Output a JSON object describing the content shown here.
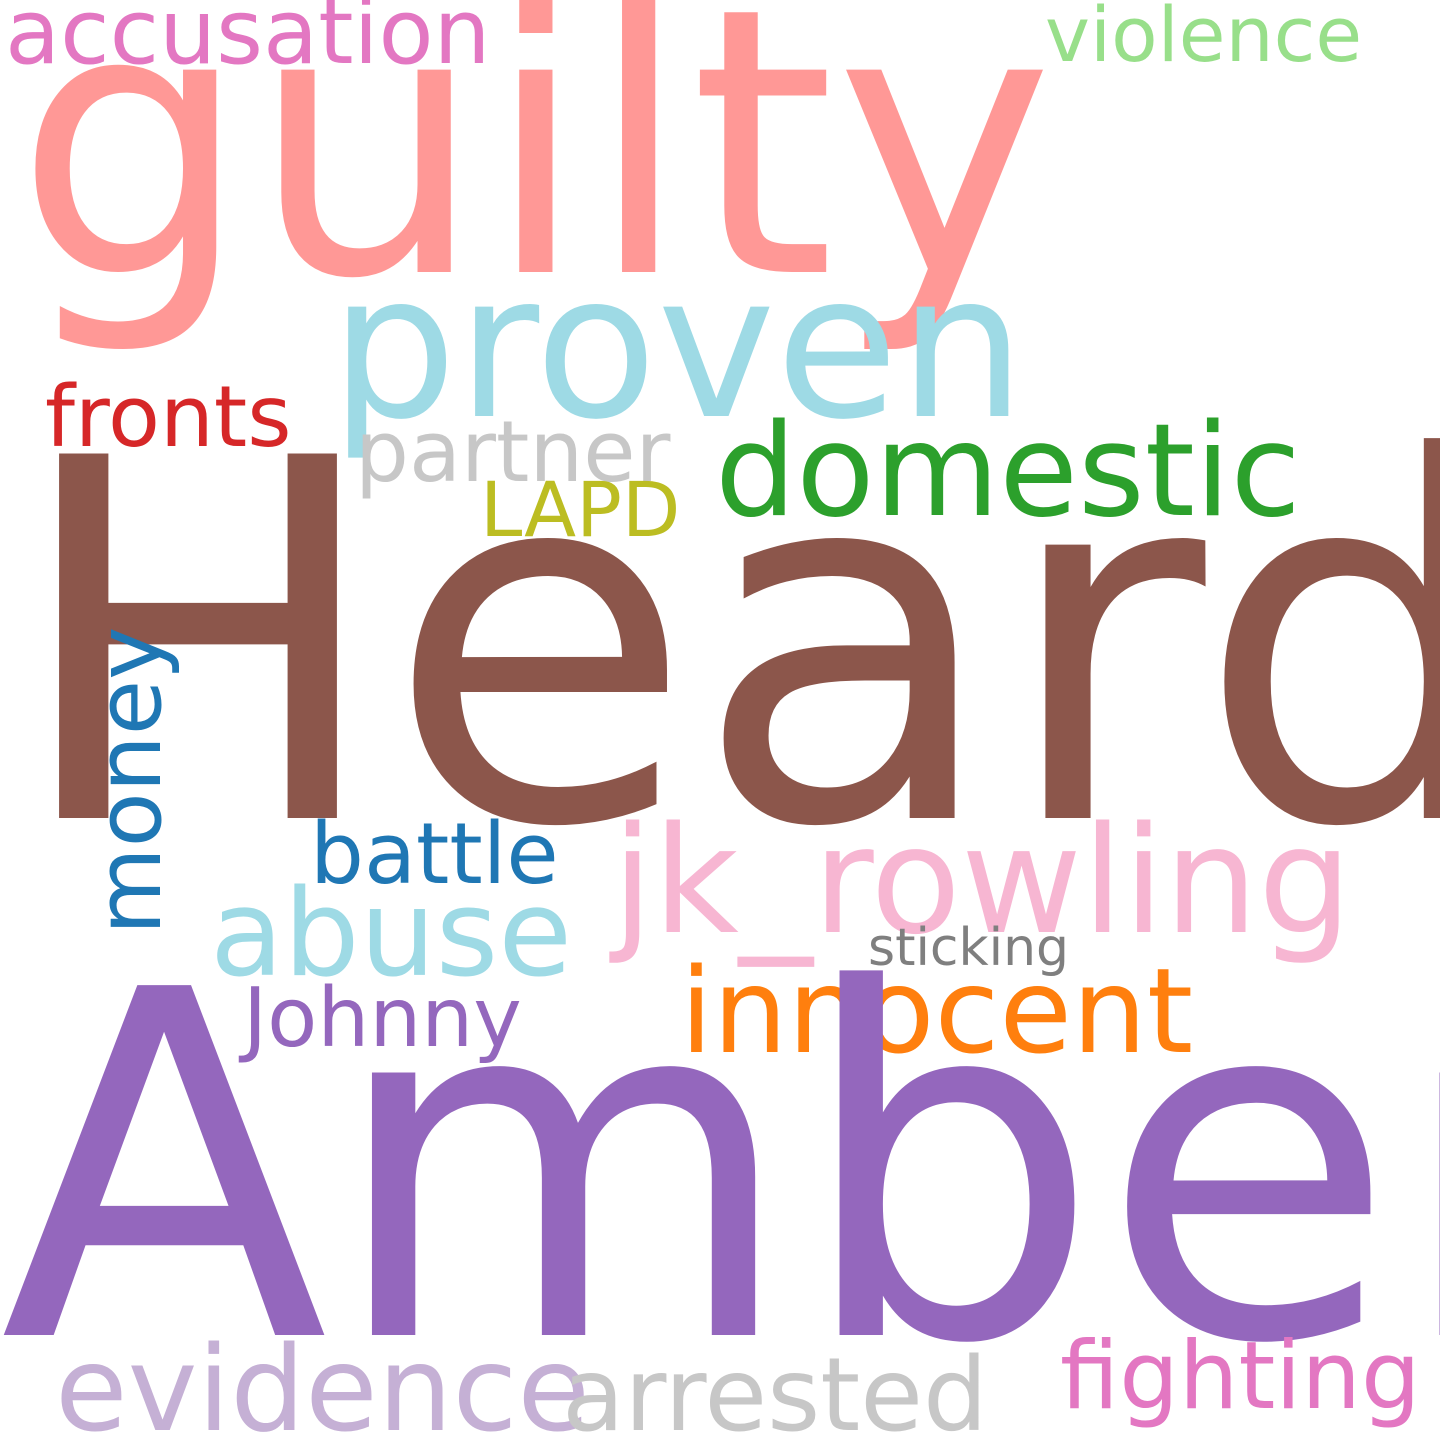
{
  "words": {
    "guilty": {
      "text": "guilty",
      "color": "#ff9896"
    },
    "proven": {
      "text": "proven",
      "color": "#9edae5"
    },
    "heard": {
      "text": "Heard",
      "color": "#8c564b"
    },
    "amber": {
      "text": "Amber",
      "color": "#9467bd"
    },
    "accusation": {
      "text": "accusation",
      "color": "#e377c2"
    },
    "violence": {
      "text": "violence",
      "color": "#98df8a"
    },
    "fronts": {
      "text": "fronts",
      "color": "#d62728"
    },
    "partner": {
      "text": "partner",
      "color": "#c7c7c7"
    },
    "domestic": {
      "text": "domestic",
      "color": "#2ca02c"
    },
    "lapd": {
      "text": "LAPD",
      "color": "#bcbd22"
    },
    "money": {
      "text": "money",
      "color": "#1f77b4"
    },
    "battle": {
      "text": "battle",
      "color": "#1f77b4"
    },
    "jk_rowling": {
      "text": "jk_rowling",
      "color": "#f7b6d2"
    },
    "abuse": {
      "text": "abuse",
      "color": "#9edae5"
    },
    "sticking": {
      "text": "sticking",
      "color": "#7f7f7f"
    },
    "innocent": {
      "text": "innocent",
      "color": "#ff7f0e"
    },
    "johnny": {
      "text": "Johnny",
      "color": "#9467bd"
    },
    "evidence": {
      "text": "evidence",
      "color": "#c5b0d5"
    },
    "arrested": {
      "text": "arrested",
      "color": "#c7c7c7"
    },
    "fighting": {
      "text": "fighting",
      "color": "#e377c2"
    }
  }
}
